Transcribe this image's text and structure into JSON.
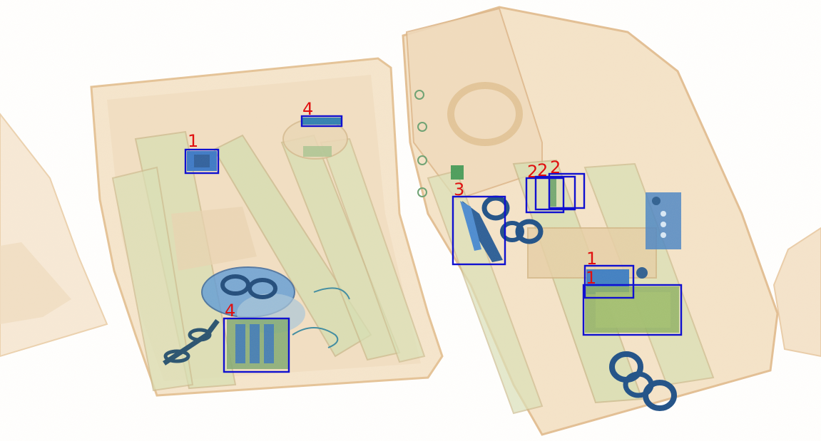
{
  "image": {
    "type": "x-ray baggage scan",
    "box_color": "#1010d0",
    "label_color": "#e01010"
  },
  "detections": [
    {
      "label": "1"
    },
    {
      "label": "4"
    },
    {
      "label": "4"
    },
    {
      "label": "3"
    },
    {
      "label": "2"
    },
    {
      "label": "2"
    },
    {
      "label": "2"
    },
    {
      "label": "1"
    },
    {
      "label": "1"
    }
  ]
}
